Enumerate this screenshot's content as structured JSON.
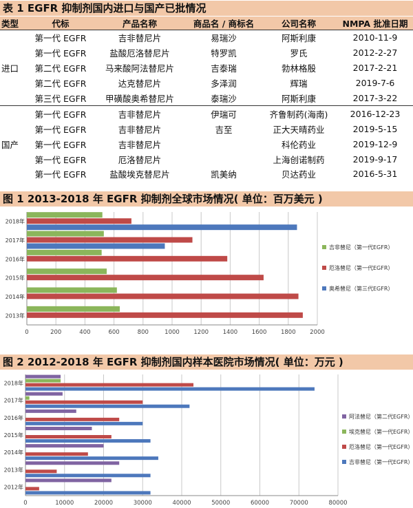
{
  "table": {
    "title": "表 1    EGFR 抑制剂国内进口与国产已批情况",
    "headers": [
      "类型",
      "代标",
      "产品名称",
      "商品名 / 商标名",
      "公司名称",
      "NMPA 批准日期"
    ],
    "groups": [
      {
        "type": "进口",
        "rows": [
          [
            "第一代 EGFR",
            "吉非替尼片",
            "易瑞沙",
            "阿斯利康",
            "2010-11-9"
          ],
          [
            "第一代 EGFR",
            "盐酸厄洛替尼片",
            "特罗凯",
            "罗氏",
            "2012-2-27"
          ],
          [
            "第二代 EGFR",
            "马来酸阿法替尼片",
            "吉泰瑞",
            "勃林格殷",
            "2017-2-21"
          ],
          [
            "第二代 EGFR",
            "达克替尼片",
            "多泽润",
            "辉瑞",
            "2019-7-6"
          ],
          [
            "第三代 EGFR",
            "甲磺酸奥希替尼片",
            "泰瑞沙",
            "阿斯利康",
            "2017-3-22"
          ]
        ]
      },
      {
        "type": "国产",
        "rows": [
          [
            "第一代 EGFR",
            "吉非替尼片",
            "伊瑞可",
            "齐鲁制药(海南)",
            "2016-12-23"
          ],
          [
            "第一代 EGFR",
            "吉非替尼片",
            "吉至",
            "正大天晴药业",
            "2019-5-15"
          ],
          [
            "第一代 EGFR",
            "吉非替尼片",
            "",
            "科伦药业",
            "2019-12-9"
          ],
          [
            "第一代 EGFR",
            "厄洛替尼片",
            "",
            "上海创诺制药",
            "2019-9-17"
          ],
          [
            "第一代 EGFR",
            "盐酸埃克替尼片",
            "凯美纳",
            "贝达药业",
            "2016-5-31"
          ]
        ]
      }
    ]
  },
  "fig1": {
    "title": "图 1    2013-2018 年 EGFR 抑制剂全球市场情况( 单位：百万美元    )"
  },
  "fig2": {
    "title": "图 2    2012-2018 年 EGFR 抑制剂国内样本医院市场情况( 单位：万元    )"
  },
  "chart_data": [
    {
      "type": "bar",
      "orientation": "horizontal",
      "categories": [
        "2018年",
        "2017年",
        "2016年",
        "2015年",
        "2014年",
        "2013年"
      ],
      "series": [
        {
          "name": "吉非替尼（第一代EGFR）",
          "color": "#8bb65b",
          "values": [
            520,
            530,
            515,
            550,
            620,
            640
          ]
        },
        {
          "name": "厄洛替尼（第一代EGFR）",
          "color": "#bf4a48",
          "values": [
            720,
            1140,
            1380,
            1630,
            1870,
            1900
          ]
        },
        {
          "name": "奥希替尼（第三代EGFR）",
          "color": "#4d78bc",
          "values": [
            1860,
            950,
            0,
            0,
            0,
            0
          ]
        }
      ],
      "xlim": [
        0,
        2000
      ],
      "xticks": [
        "0",
        "200",
        "400",
        "600",
        "800",
        "1000",
        "1200",
        "1400",
        "1600",
        "1800",
        "2000"
      ],
      "grid": true,
      "legend": "right"
    },
    {
      "type": "bar",
      "orientation": "horizontal",
      "categories": [
        "2018年",
        "2017年",
        "2016年",
        "2015年",
        "2014年",
        "2013年",
        "2012年"
      ],
      "series": [
        {
          "name": "阿法替尼（第二代EGFR）",
          "color": "#8064a2",
          "values": [
            9000,
            9500,
            13000,
            17000,
            20000,
            24000,
            22000
          ]
        },
        {
          "name": "埃克替尼（第一代EGFR）",
          "color": "#8bb65b",
          "values": [
            9000,
            1000,
            0,
            0,
            0,
            0,
            0
          ]
        },
        {
          "name": "厄洛替尼（第一代EGFR）",
          "color": "#bf4a48",
          "values": [
            43000,
            30000,
            24000,
            22000,
            16000,
            8000,
            3500
          ]
        },
        {
          "name": "吉非替尼（第一代EGFR）",
          "color": "#4d78bc",
          "values": [
            74000,
            42000,
            30000,
            32000,
            34000,
            32000,
            32000
          ]
        }
      ],
      "xlim": [
        0,
        80000
      ],
      "xticks": [
        "0",
        "10000",
        "20000",
        "30000",
        "40000",
        "50000",
        "60000",
        "70000",
        "80000"
      ],
      "grid": true,
      "legend": "right"
    }
  ]
}
